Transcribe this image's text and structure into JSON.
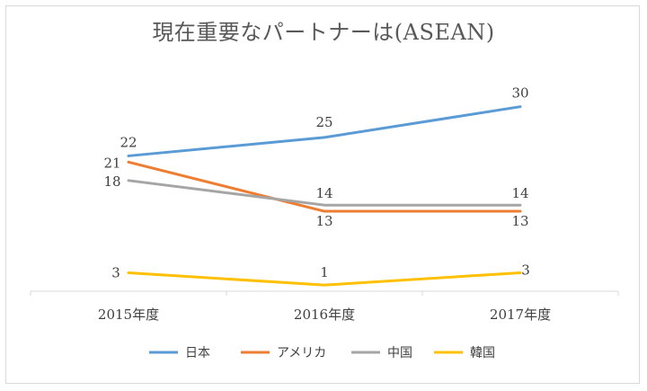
{
  "chart_data": {
    "type": "line",
    "title": "現在重要なパートナーは(ASEAN)",
    "categories": [
      "2015年度",
      "2016年度",
      "2017年度"
    ],
    "series": [
      {
        "name": "日本",
        "values": [
          22,
          25,
          30
        ],
        "color": "#5b9bd5"
      },
      {
        "name": "アメリカ",
        "values": [
          21,
          13,
          13
        ],
        "color": "#ed7d31"
      },
      {
        "name": "中国",
        "values": [
          18,
          14,
          14
        ],
        "color": "#a5a5a5"
      },
      {
        "name": "韓国",
        "values": [
          3,
          1,
          3
        ],
        "color": "#ffc000"
      }
    ],
    "ylim": [
      0,
      32
    ],
    "grid": false,
    "legend_position": "bottom"
  }
}
